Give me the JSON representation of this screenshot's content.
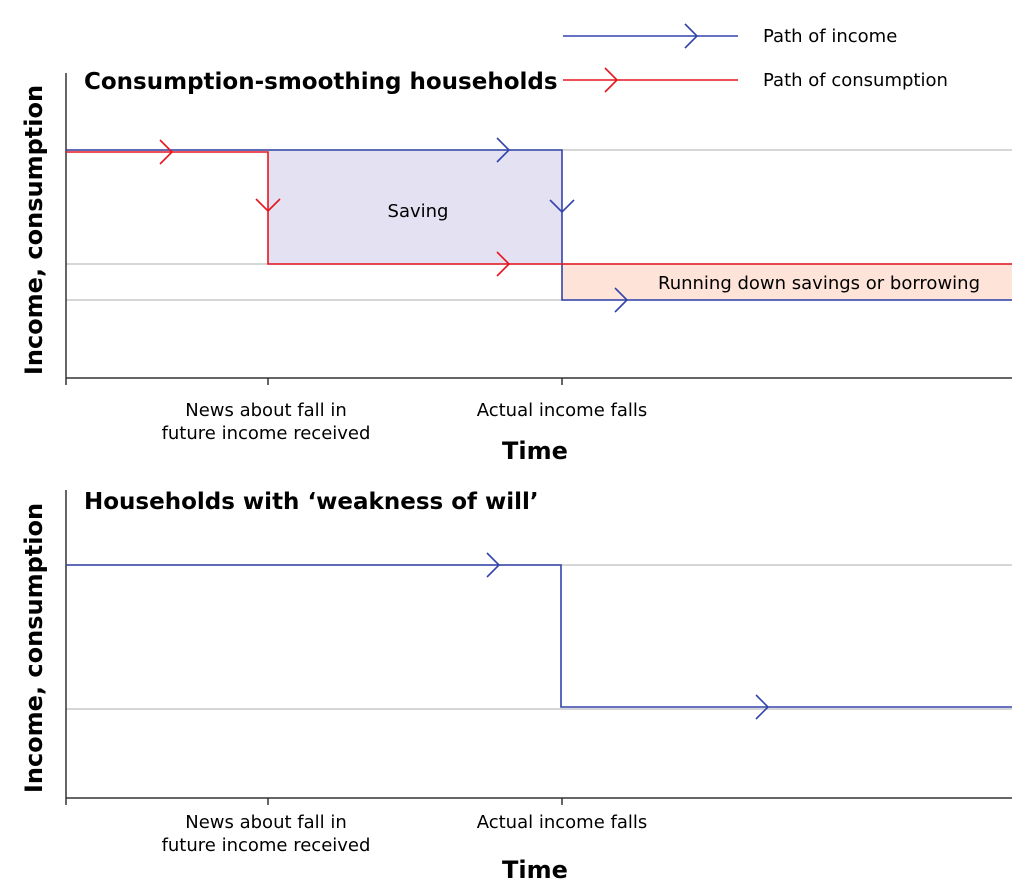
{
  "legend": {
    "income": {
      "label": "Path of income",
      "color": "#3344aa"
    },
    "consumption": {
      "label": "Path of consumption",
      "color": "#e8141e"
    }
  },
  "panels": [
    {
      "title": "Consumption-smoothing households",
      "ylabel": "Income, consumption",
      "xlabel": "Time",
      "ticks": [
        {
          "line1": "News about fall in",
          "line2": "future income received"
        },
        {
          "line1": "Actual income falls",
          "line2": ""
        }
      ],
      "regions": {
        "saving": {
          "label": "Saving",
          "color": "#e3e1f2"
        },
        "dissaving": {
          "label": "Running down savings or borrowing",
          "color": "#fde3d8"
        }
      }
    },
    {
      "title": "Households with ‘weakness of will’",
      "ylabel": "Income, consumption",
      "xlabel": "Time",
      "ticks": [
        {
          "line1": "News about fall in",
          "line2": "future income received"
        },
        {
          "line1": "Actual income falls",
          "line2": ""
        }
      ]
    }
  ]
}
